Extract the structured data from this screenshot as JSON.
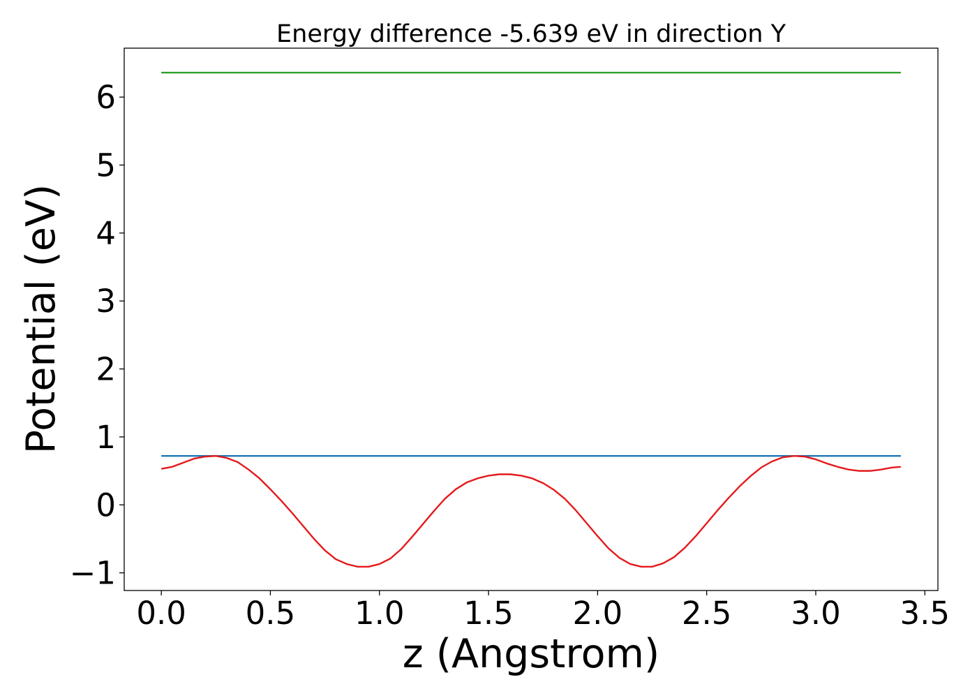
{
  "chart_data": {
    "type": "line",
    "title": "Energy difference -5.639 eV in direction Y",
    "xlabel": "z (Angstrom)",
    "ylabel": "Potential (eV)",
    "xlim": [
      -0.17,
      3.56
    ],
    "ylim": [
      -1.26,
      6.72
    ],
    "x_ticks": [
      0.0,
      0.5,
      1.0,
      1.5,
      2.0,
      2.5,
      3.0,
      3.5
    ],
    "x_tick_labels": [
      "0.0",
      "0.5",
      "1.0",
      "1.5",
      "2.0",
      "2.5",
      "3.0",
      "3.5"
    ],
    "y_ticks": [
      -1,
      0,
      1,
      2,
      3,
      4,
      5,
      6
    ],
    "y_tick_labels": [
      "−1",
      "0",
      "1",
      "2",
      "3",
      "4",
      "5",
      "6"
    ],
    "grid": false,
    "series": [
      {
        "color": "#2ca02c",
        "x": [
          0.0,
          3.39
        ],
        "y": [
          6.36,
          6.36
        ]
      },
      {
        "color": "#1f77b4",
        "x": [
          0.0,
          3.39
        ],
        "y": [
          0.72,
          0.72
        ]
      },
      {
        "color": "#e41a1c",
        "x": [
          0.0,
          0.05,
          0.1,
          0.15,
          0.2,
          0.25,
          0.3,
          0.35,
          0.4,
          0.45,
          0.5,
          0.55,
          0.6,
          0.65,
          0.7,
          0.75,
          0.8,
          0.85,
          0.9,
          0.95,
          1.0,
          1.05,
          1.1,
          1.15,
          1.2,
          1.25,
          1.3,
          1.35,
          1.4,
          1.45,
          1.5,
          1.55,
          1.6,
          1.65,
          1.7,
          1.75,
          1.8,
          1.85,
          1.9,
          1.95,
          2.0,
          2.05,
          2.1,
          2.15,
          2.2,
          2.25,
          2.3,
          2.35,
          2.4,
          2.45,
          2.5,
          2.55,
          2.6,
          2.65,
          2.7,
          2.75,
          2.8,
          2.85,
          2.9,
          2.95,
          3.0,
          3.05,
          3.1,
          3.15,
          3.2,
          3.25,
          3.3,
          3.35,
          3.39
        ],
        "y": [
          0.53,
          0.56,
          0.62,
          0.68,
          0.71,
          0.72,
          0.69,
          0.63,
          0.52,
          0.39,
          0.23,
          0.06,
          -0.12,
          -0.31,
          -0.5,
          -0.67,
          -0.8,
          -0.87,
          -0.91,
          -0.91,
          -0.87,
          -0.79,
          -0.65,
          -0.47,
          -0.28,
          -0.09,
          0.09,
          0.23,
          0.33,
          0.39,
          0.43,
          0.45,
          0.45,
          0.43,
          0.39,
          0.32,
          0.22,
          0.09,
          -0.08,
          -0.27,
          -0.46,
          -0.64,
          -0.78,
          -0.87,
          -0.91,
          -0.91,
          -0.86,
          -0.77,
          -0.63,
          -0.46,
          -0.27,
          -0.08,
          0.1,
          0.27,
          0.42,
          0.55,
          0.64,
          0.7,
          0.72,
          0.71,
          0.67,
          0.61,
          0.56,
          0.52,
          0.5,
          0.5,
          0.52,
          0.55,
          0.56
        ]
      }
    ]
  }
}
